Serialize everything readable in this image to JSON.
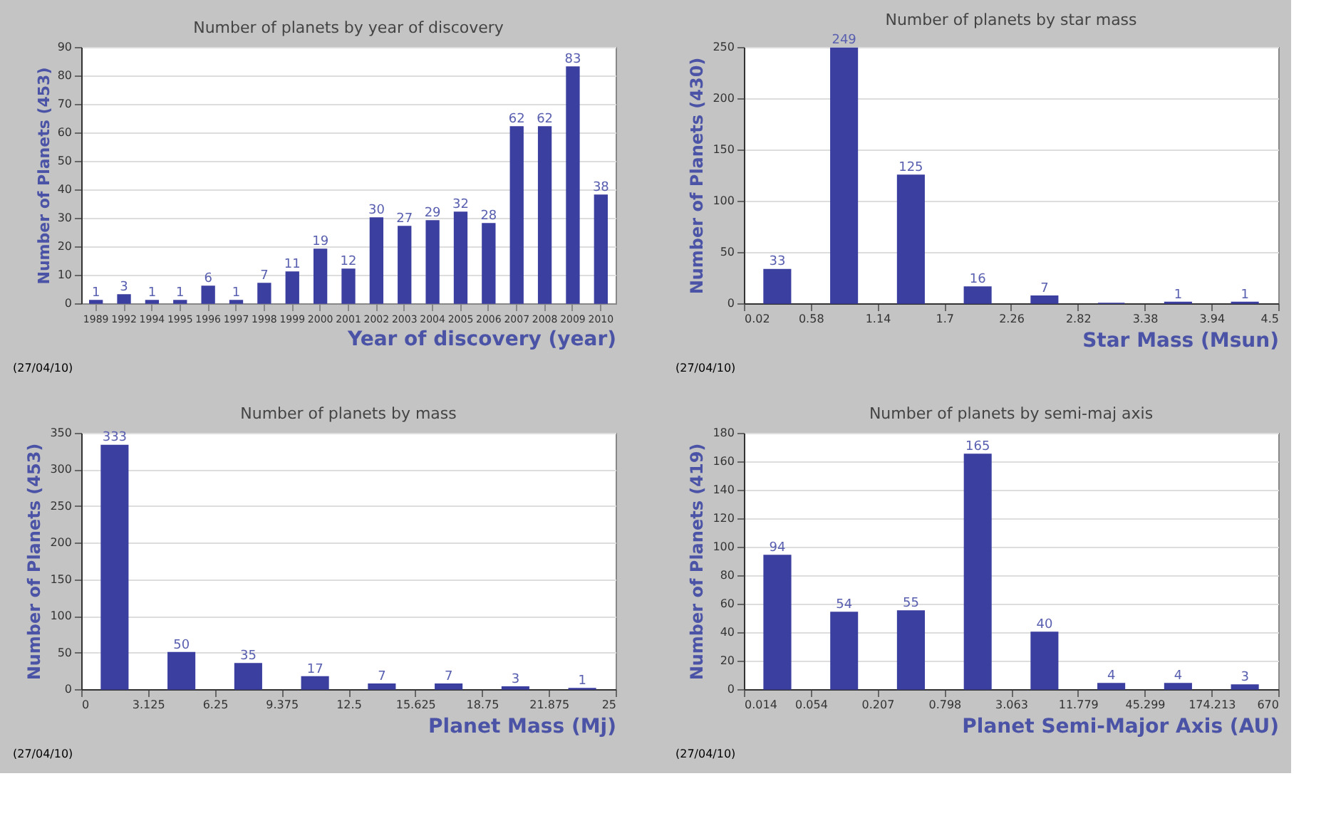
{
  "chart_data": [
    {
      "type": "bar",
      "title": "Number of planets by year of discovery",
      "xlabel": "Year of discovery (year)",
      "ylabel": "Number of Planets (453)",
      "categories": [
        "1989",
        "1992",
        "1994",
        "1995",
        "1996",
        "1997",
        "1998",
        "1999",
        "2000",
        "2001",
        "2002",
        "2003",
        "2004",
        "2005",
        "2006",
        "2007",
        "2008",
        "2009",
        "2010"
      ],
      "values": [
        1,
        3,
        1,
        1,
        6,
        1,
        7,
        11,
        19,
        12,
        30,
        27,
        29,
        32,
        28,
        62,
        62,
        83,
        38
      ],
      "color": "#3b3f9f",
      "ylim": [
        0,
        90
      ],
      "yticks": [
        0,
        10,
        20,
        30,
        40,
        50,
        60,
        70,
        80,
        90
      ],
      "grid": "y",
      "data_labels": true,
      "annotations": [
        "(27/04/10)"
      ]
    },
    {
      "type": "histogram",
      "title": "Number of planets by star mass",
      "xlabel": "Star Mass (Msun)",
      "ylabel": "Number of Planets (430)",
      "bins": [
        0.02,
        0.58,
        1.14,
        1.7,
        2.26,
        2.82,
        3.38,
        3.94,
        4.5
      ],
      "values": [
        33,
        249,
        125,
        16,
        7,
        0,
        1,
        1
      ],
      "value_labels": [
        "33",
        "249",
        "125",
        "16",
        "7",
        null,
        "1",
        "1"
      ],
      "color": "#3b3f9f",
      "xlim": [
        0.02,
        4.5
      ],
      "xticks": [
        0.02,
        0.58,
        1.14,
        1.7,
        2.26,
        2.82,
        3.38,
        3.94,
        4.5
      ],
      "ylim": [
        0,
        250
      ],
      "yticks": [
        0,
        50,
        100,
        150,
        200,
        250
      ],
      "grid": "y",
      "annotations": [
        "(27/04/10)"
      ]
    },
    {
      "type": "histogram",
      "title": "Number of planets by mass",
      "xlabel": "Planet Mass (Mj)",
      "ylabel": "Number of Planets (453)",
      "bins": [
        0,
        3.125,
        6.25,
        9.375,
        12.5,
        15.625,
        18.75,
        21.875,
        25
      ],
      "values": [
        333,
        50,
        35,
        17,
        7,
        7,
        3,
        1
      ],
      "color": "#3b3f9f",
      "xlim": [
        0,
        25
      ],
      "xticks": [
        0,
        3.125,
        6.25,
        9.375,
        12.5,
        15.625,
        18.75,
        21.875,
        25
      ],
      "ylim": [
        0,
        350
      ],
      "yticks": [
        0,
        50,
        100,
        150,
        200,
        250,
        300,
        350
      ],
      "grid": "y",
      "data_labels": true,
      "annotations": [
        "(27/04/10)"
      ]
    },
    {
      "type": "histogram",
      "title": "Number of planets by semi-maj axis",
      "xlabel": "Planet Semi-Major Axis (AU)",
      "ylabel": "Number of Planets (419)",
      "bins": [
        0.014,
        0.054,
        0.207,
        0.798,
        3.063,
        11.779,
        45.299,
        174.213,
        670
      ],
      "values": [
        94,
        54,
        55,
        165,
        40,
        4,
        4,
        3
      ],
      "color": "#3b3f9f",
      "log": "x",
      "xlim": [
        0.014,
        670
      ],
      "xticks": [
        0.014,
        0.054,
        0.207,
        0.798,
        3.063,
        11.779,
        45.299,
        174.213,
        670
      ],
      "ylim": [
        0,
        180
      ],
      "yticks": [
        0,
        20,
        40,
        60,
        80,
        100,
        120,
        140,
        160,
        180
      ],
      "grid": "y",
      "data_labels": true,
      "annotations": [
        "(27/04/10)"
      ]
    }
  ]
}
